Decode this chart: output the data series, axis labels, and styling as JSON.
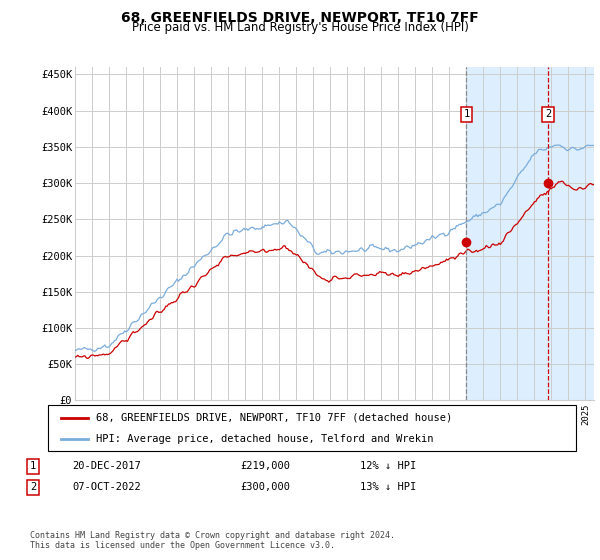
{
  "title": "68, GREENFIELDS DRIVE, NEWPORT, TF10 7FF",
  "subtitle": "Price paid vs. HM Land Registry's House Price Index (HPI)",
  "footer": "Contains HM Land Registry data © Crown copyright and database right 2024.\nThis data is licensed under the Open Government Licence v3.0.",
  "legend_line1": "68, GREENFIELDS DRIVE, NEWPORT, TF10 7FF (detached house)",
  "legend_line2": "HPI: Average price, detached house, Telford and Wrekin",
  "annotation1_date": "20-DEC-2017",
  "annotation1_price": "£219,000",
  "annotation1_hpi": "12% ↓ HPI",
  "annotation2_date": "07-OCT-2022",
  "annotation2_price": "£300,000",
  "annotation2_hpi": "13% ↓ HPI",
  "red_color": "#cc0000",
  "blue_color": "#7aacdc",
  "shading_color": "#ddeeff",
  "grid_color": "#cccccc",
  "background_color": "#ffffff",
  "ylim": [
    0,
    460000
  ],
  "yticks": [
    0,
    50000,
    100000,
    150000,
    200000,
    250000,
    300000,
    350000,
    400000,
    450000
  ],
  "ytick_labels": [
    "£0",
    "£50K",
    "£100K",
    "£150K",
    "£200K",
    "£250K",
    "£300K",
    "£350K",
    "£400K",
    "£450K"
  ],
  "vline1_x": 2018.0,
  "vline2_x": 2022.8,
  "purchase1_x": 2018.0,
  "purchase1_y": 219000,
  "purchase2_x": 2022.8,
  "purchase2_y": 300000,
  "xmin": 1995,
  "xmax": 2025.5
}
